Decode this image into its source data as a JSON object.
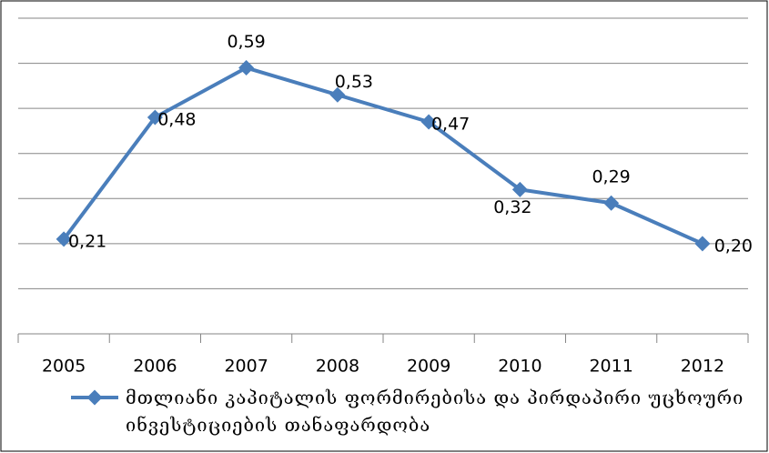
{
  "chart_data": {
    "type": "line",
    "categories": [
      "2005",
      "2006",
      "2007",
      "2008",
      "2009",
      "2010",
      "2011",
      "2012"
    ],
    "series": [
      {
        "name": "მთლიანი კაპიტალის ფორმირებისა და პირდაპირი უცხოური ინვესტიციების თანაფარდობა",
        "color": "#4a7ebb",
        "values": [
          0.21,
          0.48,
          0.59,
          0.53,
          0.47,
          0.32,
          0.29,
          0.2
        ],
        "value_labels": [
          "0,21",
          "0,48",
          "0,59",
          "0,53",
          "0,47",
          "0,32",
          "0,29",
          "0,20"
        ]
      }
    ],
    "ylim": [
      0,
      0.7
    ],
    "yticks": [
      0,
      0.1,
      0.2,
      0.3,
      0.4,
      0.5,
      0.6,
      0.7
    ],
    "grid": true,
    "legend": "bottom"
  }
}
